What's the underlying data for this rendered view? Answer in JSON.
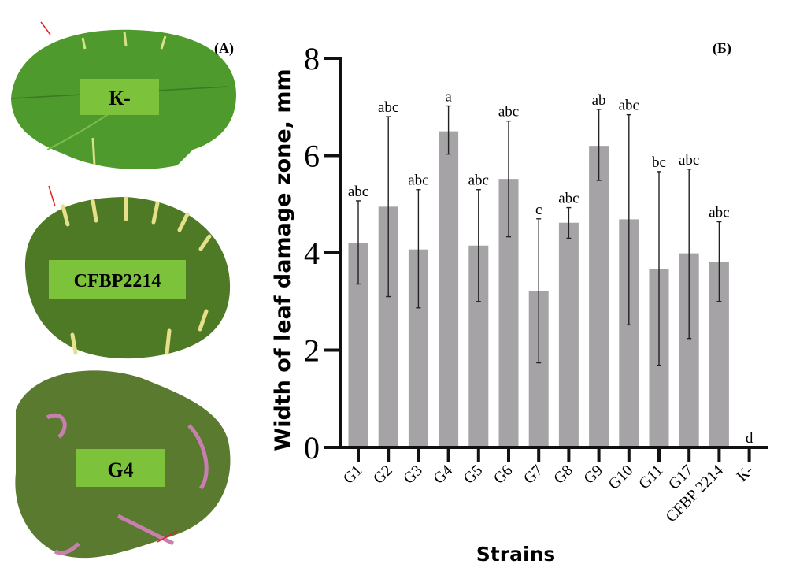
{
  "panel_a": {
    "label": "(A)",
    "leaves": [
      {
        "label": "К-",
        "symptom": "healthy"
      },
      {
        "label": "CFBP2214",
        "symptom": "chlorotic"
      },
      {
        "label": "G4",
        "symptom": "necrotic"
      }
    ],
    "colors": {
      "leaf": "#4f9a2c",
      "label_box": "#7cc23a",
      "chlorosis": "#e6e08a",
      "necrosis": "#c87fb0"
    }
  },
  "chart_data": {
    "type": "bar",
    "panel_label": "(Б)",
    "title": "",
    "xlabel": "Strains",
    "ylabel": "Width of leaf damage zone, mm",
    "ylim": [
      0,
      8
    ],
    "yticks": [
      0,
      2,
      4,
      6,
      8
    ],
    "grid": false,
    "bar_color": "#a5a3a6",
    "categories": [
      "G1",
      "G2",
      "G3",
      "G4",
      "G5",
      "G6",
      "G7",
      "G8",
      "G9",
      "G10",
      "G11",
      "G17",
      "CFBP 2214",
      "К-"
    ],
    "values": [
      4.21,
      4.95,
      4.07,
      6.5,
      4.15,
      5.52,
      3.21,
      4.62,
      6.2,
      4.69,
      3.67,
      3.99,
      3.81,
      0
    ],
    "error_low": [
      3.36,
      3.1,
      2.87,
      6.03,
      3.0,
      4.33,
      1.74,
      4.3,
      5.49,
      2.52,
      1.69,
      2.24,
      3.0,
      0
    ],
    "error_high": [
      5.07,
      6.8,
      5.3,
      7.02,
      5.3,
      6.71,
      4.7,
      4.93,
      6.95,
      6.84,
      5.67,
      5.72,
      4.64,
      0
    ],
    "significance_letters": [
      "abc",
      "abc",
      "abc",
      "a",
      "abc",
      "abc",
      "c",
      "abc",
      "ab",
      "abc",
      "bc",
      "abc",
      "abc",
      "d"
    ]
  }
}
